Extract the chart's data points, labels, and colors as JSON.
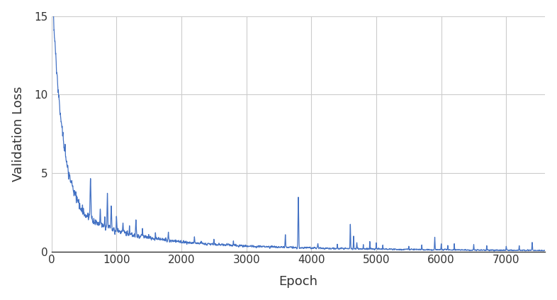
{
  "title": "",
  "xlabel": "Epoch",
  "ylabel": "Validation Loss",
  "xlim": [
    0,
    7600
  ],
  "ylim": [
    0,
    15
  ],
  "yticks": [
    0,
    5,
    10,
    15
  ],
  "xticks": [
    0,
    1000,
    2000,
    3000,
    4000,
    5000,
    6000,
    7000
  ],
  "line_color": "#4472C4",
  "line_width": 0.9,
  "background_color": "#ffffff",
  "grid_color": "#cccccc",
  "label_fontsize": 13,
  "tick_fontsize": 11,
  "figsize": [
    7.86,
    4.23
  ],
  "dpi": 100
}
